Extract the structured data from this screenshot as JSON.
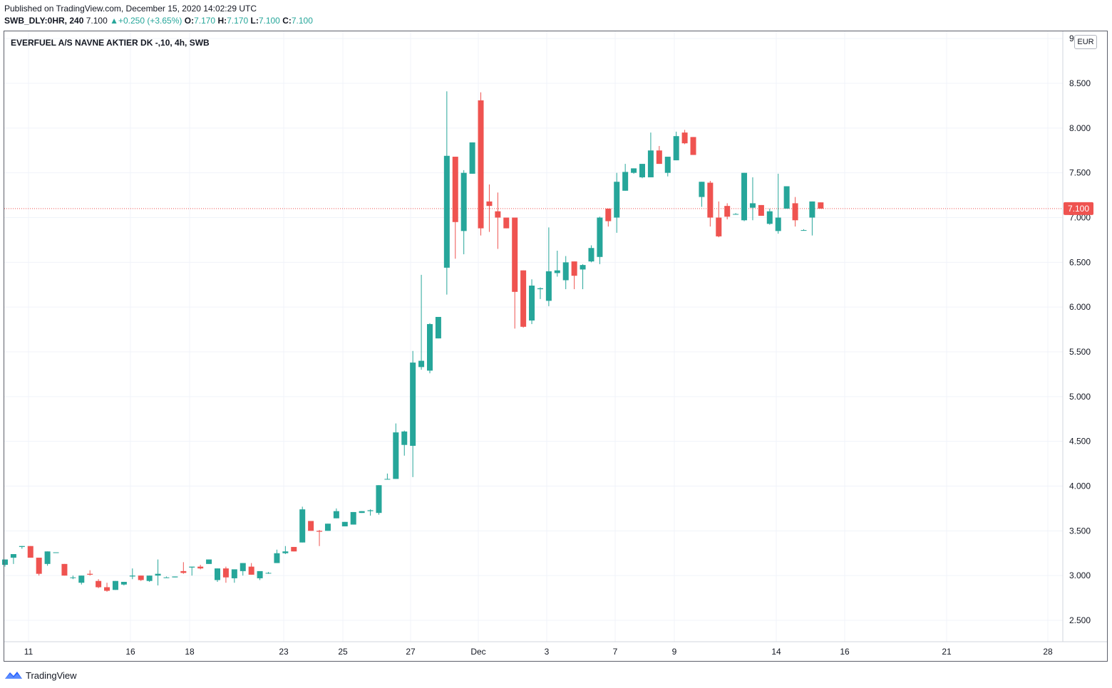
{
  "header": {
    "published": "Published on TradingView.com, December 15, 2020 14:02:29 UTC",
    "symbol": "SWB_DLY:0HR, 240",
    "last": "7.100",
    "change": "+0.250 (+3.65%)",
    "o_label": "O:",
    "o": "7.170",
    "h_label": "H:",
    "h": "7.170",
    "l_label": "L:",
    "l": "7.100",
    "c_label": "C:",
    "c": "7.100"
  },
  "legend_title": "EVERFUEL A/S NAVNE AKTIER DK -,10, 4h, SWB",
  "currency": "EUR",
  "footer": {
    "brand": "TradingView"
  },
  "colors": {
    "up": "#26a69a",
    "down": "#ef5350",
    "grid": "#f0f3fa",
    "axis_text": "#131722"
  },
  "chart_data": {
    "type": "candlestick",
    "timeframe": "4h",
    "ylim": [
      2.3,
      9.0
    ],
    "y_ticks": [
      "2.500",
      "3.000",
      "3.500",
      "4.000",
      "4.500",
      "5.000",
      "5.500",
      "6.000",
      "6.500",
      "7.000",
      "7.500",
      "8.000",
      "8.500",
      "9"
    ],
    "x_ticks": [
      "11",
      "16",
      "18",
      "23",
      "25",
      "27",
      "Dec",
      "3",
      "7",
      "9",
      "14",
      "16",
      "21",
      "28"
    ],
    "last_price_label": "7.100",
    "last_price": 7.1,
    "candles": [
      [
        3.12,
        3.18,
        3.1,
        3.18
      ],
      [
        3.2,
        3.24,
        3.13,
        3.24
      ],
      [
        3.32,
        3.33,
        3.3,
        3.33
      ],
      [
        3.33,
        3.33,
        3.2,
        3.2
      ],
      [
        3.2,
        3.2,
        3.0,
        3.02
      ],
      [
        3.13,
        3.27,
        3.11,
        3.27
      ],
      [
        3.26,
        3.26,
        3.26,
        3.26
      ],
      [
        3.13,
        3.13,
        3.0,
        3.0
      ],
      [
        2.98,
        3.0,
        2.96,
        2.98
      ],
      [
        2.92,
        3.0,
        2.9,
        3.0
      ],
      [
        3.02,
        3.06,
        3.0,
        3.01
      ],
      [
        2.94,
        2.96,
        2.86,
        2.87
      ],
      [
        2.87,
        2.92,
        2.82,
        2.83
      ],
      [
        2.84,
        2.94,
        2.84,
        2.94
      ],
      [
        2.9,
        2.93,
        2.89,
        2.93
      ],
      [
        2.99,
        3.08,
        2.96,
        3.0
      ],
      [
        3.0,
        3.0,
        2.94,
        2.95
      ],
      [
        2.94,
        3.0,
        2.93,
        3.0
      ],
      [
        3.0,
        3.18,
        2.89,
        3.02
      ],
      [
        2.98,
        2.99,
        2.98,
        2.98
      ],
      [
        2.98,
        2.99,
        2.98,
        2.99
      ],
      [
        3.05,
        3.15,
        3.02,
        3.03
      ],
      [
        3.09,
        3.1,
        3.0,
        3.1
      ],
      [
        3.1,
        3.12,
        3.07,
        3.08
      ],
      [
        3.13,
        3.18,
        3.13,
        3.18
      ],
      [
        2.95,
        3.08,
        2.93,
        3.08
      ],
      [
        3.08,
        3.1,
        2.92,
        2.98
      ],
      [
        2.97,
        3.06,
        2.92,
        3.07
      ],
      [
        3.05,
        3.14,
        3.0,
        3.14
      ],
      [
        3.1,
        3.14,
        3.01,
        3.01
      ],
      [
        2.97,
        3.04,
        2.95,
        3.05
      ],
      [
        3.03,
        3.04,
        3.02,
        3.03
      ],
      [
        3.14,
        3.29,
        3.14,
        3.25
      ],
      [
        3.25,
        3.33,
        3.24,
        3.27
      ],
      [
        3.32,
        3.32,
        3.27,
        3.27
      ],
      [
        3.37,
        3.77,
        3.37,
        3.74
      ],
      [
        3.61,
        3.61,
        3.5,
        3.5
      ],
      [
        3.5,
        3.51,
        3.33,
        3.49
      ],
      [
        3.5,
        3.58,
        3.5,
        3.58
      ],
      [
        3.64,
        3.75,
        3.64,
        3.72
      ],
      [
        3.55,
        3.6,
        3.55,
        3.6
      ],
      [
        3.57,
        3.71,
        3.57,
        3.71
      ],
      [
        3.7,
        3.72,
        3.7,
        3.72
      ],
      [
        3.72,
        3.74,
        3.67,
        3.73
      ],
      [
        3.7,
        4.01,
        3.68,
        4.01
      ],
      [
        4.08,
        4.14,
        4.08,
        4.08
      ],
      [
        4.08,
        4.7,
        4.08,
        4.6
      ],
      [
        4.46,
        4.62,
        4.34,
        4.61
      ],
      [
        4.45,
        5.51,
        4.1,
        5.38
      ],
      [
        5.33,
        6.36,
        5.3,
        5.4
      ],
      [
        5.29,
        5.82,
        5.26,
        5.81
      ],
      [
        5.65,
        5.89,
        5.65,
        5.89
      ],
      [
        6.44,
        8.41,
        6.14,
        7.69
      ],
      [
        7.68,
        7.68,
        6.54,
        6.95
      ],
      [
        6.85,
        7.53,
        6.59,
        7.5
      ],
      [
        7.49,
        7.84,
        7.49,
        7.84
      ],
      [
        8.31,
        8.4,
        6.8,
        6.88
      ],
      [
        7.18,
        7.37,
        6.84,
        7.13
      ],
      [
        7.07,
        7.28,
        6.65,
        7.0
      ],
      [
        7.0,
        7.0,
        6.88,
        6.88
      ],
      [
        7.0,
        7.0,
        5.76,
        6.17
      ],
      [
        6.41,
        6.41,
        5.77,
        5.78
      ],
      [
        5.85,
        6.31,
        5.81,
        6.24
      ],
      [
        6.2,
        6.22,
        6.09,
        6.21
      ],
      [
        6.07,
        6.89,
        6.01,
        6.4
      ],
      [
        6.38,
        6.63,
        6.34,
        6.41
      ],
      [
        6.3,
        6.57,
        6.2,
        6.5
      ],
      [
        6.51,
        6.51,
        6.2,
        6.35
      ],
      [
        6.42,
        6.48,
        6.2,
        6.47
      ],
      [
        6.51,
        6.69,
        6.5,
        6.66
      ],
      [
        6.56,
        7.01,
        6.48,
        7.0
      ],
      [
        7.1,
        7.1,
        6.9,
        6.96
      ],
      [
        7.0,
        7.5,
        6.83,
        7.4
      ],
      [
        7.3,
        7.6,
        7.3,
        7.51
      ],
      [
        7.5,
        7.55,
        7.49,
        7.55
      ],
      [
        7.45,
        7.6,
        7.44,
        7.6
      ],
      [
        7.45,
        7.95,
        7.45,
        7.75
      ],
      [
        7.75,
        7.8,
        7.6,
        7.6
      ],
      [
        7.5,
        7.65,
        7.46,
        7.68
      ],
      [
        7.64,
        7.96,
        7.64,
        7.91
      ],
      [
        7.95,
        7.98,
        7.82,
        7.83
      ],
      [
        7.9,
        7.9,
        7.7,
        7.7
      ],
      [
        7.23,
        7.4,
        7.12,
        7.4
      ],
      [
        7.39,
        7.41,
        6.9,
        7.0
      ],
      [
        7.0,
        7.18,
        6.78,
        6.79
      ],
      [
        7.13,
        7.16,
        6.98,
        7.01
      ],
      [
        7.04,
        7.05,
        7.04,
        7.04
      ],
      [
        6.97,
        7.5,
        6.96,
        7.5
      ],
      [
        7.11,
        7.45,
        6.97,
        7.16
      ],
      [
        7.14,
        7.14,
        7.02,
        7.02
      ],
      [
        6.93,
        7.1,
        6.92,
        7.07
      ],
      [
        6.85,
        7.49,
        6.82,
        7.0
      ],
      [
        7.1,
        7.35,
        7.1,
        7.35
      ],
      [
        7.16,
        7.23,
        6.9,
        6.97
      ],
      [
        6.86,
        6.87,
        6.86,
        6.86
      ],
      [
        7.0,
        7.18,
        6.8,
        7.18
      ],
      [
        7.17,
        7.17,
        7.1,
        7.1
      ]
    ]
  }
}
